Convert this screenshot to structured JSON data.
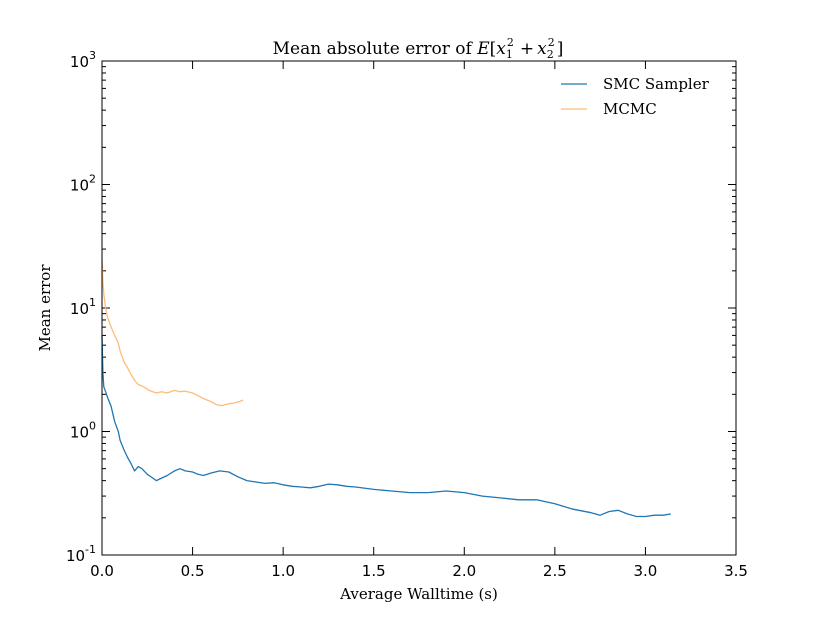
{
  "chart_data": {
    "type": "line",
    "title": "Mean absolute error of E[x₁² + x₂²]",
    "title_parts": {
      "prefix": "Mean absolute error of ",
      "func": "E",
      "var": "x",
      "sub1": "1",
      "sub2": "2",
      "sup": "2",
      "plus": "+"
    },
    "xlabel": "Average Walltime (s)",
    "ylabel": "Mean error",
    "xscale": "linear",
    "yscale": "log",
    "xlim": [
      0,
      3.5
    ],
    "ylim": [
      0.1,
      1000
    ],
    "x_ticks": [
      0.0,
      0.5,
      1.0,
      1.5,
      2.0,
      2.5,
      3.0,
      3.5
    ],
    "x_tick_labels": [
      "0.0",
      "0.5",
      "1.0",
      "1.5",
      "2.0",
      "2.5",
      "3.0",
      "3.5"
    ],
    "y_ticks": [
      {
        "value": 0.1,
        "base": "10",
        "exp": "-1"
      },
      {
        "value": 1,
        "base": "10",
        "exp": "0"
      },
      {
        "value": 10,
        "base": "10",
        "exp": "1"
      },
      {
        "value": 100,
        "base": "10",
        "exp": "2"
      },
      {
        "value": 1000,
        "base": "10",
        "exp": "3"
      }
    ],
    "grid": false,
    "legend_position": "top-right",
    "series": [
      {
        "name": "SMC Sampler",
        "color": "#1f77b4",
        "x": [
          0.0,
          0.005,
          0.01,
          0.02,
          0.03,
          0.05,
          0.07,
          0.09,
          0.1,
          0.12,
          0.14,
          0.16,
          0.18,
          0.2,
          0.22,
          0.25,
          0.28,
          0.3,
          0.33,
          0.36,
          0.4,
          0.43,
          0.46,
          0.5,
          0.53,
          0.56,
          0.6,
          0.65,
          0.7,
          0.75,
          0.8,
          0.85,
          0.9,
          0.95,
          1.0,
          1.05,
          1.1,
          1.15,
          1.2,
          1.25,
          1.3,
          1.35,
          1.4,
          1.5,
          1.6,
          1.7,
          1.8,
          1.9,
          2.0,
          2.1,
          2.2,
          2.3,
          2.4,
          2.5,
          2.6,
          2.7,
          2.75,
          2.8,
          2.85,
          2.9,
          2.95,
          3.0,
          3.05,
          3.1,
          3.14
        ],
        "y": [
          6.0,
          3.0,
          2.3,
          2.1,
          1.9,
          1.6,
          1.2,
          1.0,
          0.85,
          0.72,
          0.62,
          0.55,
          0.48,
          0.52,
          0.5,
          0.45,
          0.42,
          0.4,
          0.42,
          0.44,
          0.48,
          0.5,
          0.48,
          0.47,
          0.45,
          0.44,
          0.46,
          0.48,
          0.47,
          0.43,
          0.4,
          0.39,
          0.38,
          0.385,
          0.37,
          0.36,
          0.355,
          0.35,
          0.36,
          0.375,
          0.37,
          0.36,
          0.355,
          0.34,
          0.33,
          0.32,
          0.32,
          0.33,
          0.32,
          0.3,
          0.29,
          0.28,
          0.28,
          0.26,
          0.235,
          0.22,
          0.21,
          0.225,
          0.23,
          0.215,
          0.205,
          0.205,
          0.21,
          0.21,
          0.215
        ]
      },
      {
        "name": "MCMC",
        "color": "#ffbb78",
        "x": [
          0.0,
          0.005,
          0.01,
          0.02,
          0.03,
          0.05,
          0.07,
          0.09,
          0.1,
          0.12,
          0.14,
          0.16,
          0.18,
          0.2,
          0.23,
          0.26,
          0.3,
          0.33,
          0.36,
          0.4,
          0.43,
          0.46,
          0.5,
          0.53,
          0.56,
          0.6,
          0.63,
          0.66,
          0.7,
          0.73,
          0.76,
          0.78
        ],
        "y": [
          25.0,
          16.0,
          13.0,
          10.0,
          8.5,
          7.0,
          6.0,
          5.2,
          4.5,
          3.7,
          3.3,
          2.9,
          2.6,
          2.4,
          2.3,
          2.15,
          2.05,
          2.1,
          2.05,
          2.15,
          2.1,
          2.12,
          2.05,
          1.95,
          1.85,
          1.75,
          1.65,
          1.62,
          1.68,
          1.7,
          1.75,
          1.8
        ]
      }
    ]
  }
}
